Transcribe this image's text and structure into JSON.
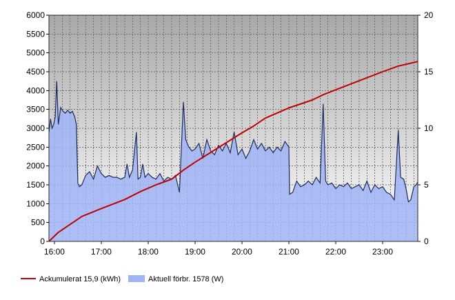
{
  "chart_data": {
    "type": "area",
    "x_ticks": [
      "16:00",
      "17:00",
      "18:00",
      "19:00",
      "20:00",
      "21:00",
      "22:00",
      "23:00"
    ],
    "x_range": [
      "15:53",
      "23:45"
    ],
    "y_left": {
      "range": [
        0,
        6000
      ],
      "ticks": [
        "0",
        "500",
        "1000",
        "1500",
        "2000",
        "2500",
        "3000",
        "3500",
        "4000",
        "4500",
        "5000",
        "5500",
        "6000"
      ]
    },
    "y_right": {
      "range": [
        0,
        20
      ],
      "ticks": [
        "0",
        "5",
        "10",
        "15",
        "20"
      ]
    },
    "grid": true,
    "legend_position": "bottom-left",
    "series": [
      {
        "name": "Ackumulerat 15,9 (kWh)",
        "type": "line",
        "axis": "right",
        "color": "#c00000",
        "points": [
          [
            "15:53",
            0.0
          ],
          [
            "16:05",
            0.8
          ],
          [
            "16:20",
            1.5
          ],
          [
            "16:35",
            2.2
          ],
          [
            "17:00",
            2.9
          ],
          [
            "17:30",
            3.7
          ],
          [
            "17:50",
            4.4
          ],
          [
            "18:10",
            5.0
          ],
          [
            "18:30",
            5.5
          ],
          [
            "18:45",
            6.3
          ],
          [
            "19:00",
            7.0
          ],
          [
            "19:30",
            8.3
          ],
          [
            "20:00",
            9.6
          ],
          [
            "20:15",
            10.2
          ],
          [
            "20:30",
            10.9
          ],
          [
            "20:50",
            11.5
          ],
          [
            "21:00",
            11.8
          ],
          [
            "21:30",
            12.5
          ],
          [
            "21:45",
            13.0
          ],
          [
            "22:00",
            13.4
          ],
          [
            "22:30",
            14.2
          ],
          [
            "23:00",
            15.0
          ],
          [
            "23:20",
            15.5
          ],
          [
            "23:45",
            15.9
          ]
        ]
      },
      {
        "name": "Aktuell förbr. 1578 (W)",
        "type": "area",
        "axis": "left",
        "color": "#9fb4f5",
        "edge_color": "#1c2a5a",
        "points": [
          [
            "15:53",
            2900
          ],
          [
            "15:55",
            3250
          ],
          [
            "15:57",
            3000
          ],
          [
            "15:59",
            3100
          ],
          [
            "16:01",
            3300
          ],
          [
            "16:03",
            4250
          ],
          [
            "16:05",
            3100
          ],
          [
            "16:08",
            3550
          ],
          [
            "16:11",
            3450
          ],
          [
            "16:14",
            3400
          ],
          [
            "16:17",
            3480
          ],
          [
            "16:20",
            3400
          ],
          [
            "16:23",
            3450
          ],
          [
            "16:26",
            3300
          ],
          [
            "16:28",
            3100
          ],
          [
            "16:30",
            1550
          ],
          [
            "16:32",
            1450
          ],
          [
            "16:35",
            1500
          ],
          [
            "16:40",
            1750
          ],
          [
            "16:45",
            1850
          ],
          [
            "16:50",
            1650
          ],
          [
            "16:55",
            2000
          ],
          [
            "17:00",
            1800
          ],
          [
            "17:05",
            1700
          ],
          [
            "17:10",
            1750
          ],
          [
            "17:15",
            1700
          ],
          [
            "17:20",
            1700
          ],
          [
            "17:25",
            1650
          ],
          [
            "17:30",
            1700
          ],
          [
            "17:33",
            2050
          ],
          [
            "17:36",
            1700
          ],
          [
            "17:40",
            1900
          ],
          [
            "17:45",
            2900
          ],
          [
            "17:47",
            1650
          ],
          [
            "17:50",
            1700
          ],
          [
            "17:53",
            2050
          ],
          [
            "17:56",
            1700
          ],
          [
            "18:00",
            1800
          ],
          [
            "18:05",
            1700
          ],
          [
            "18:10",
            1650
          ],
          [
            "18:15",
            1800
          ],
          [
            "18:20",
            1600
          ],
          [
            "18:25",
            1700
          ],
          [
            "18:30",
            1650
          ],
          [
            "18:35",
            1750
          ],
          [
            "18:40",
            1300
          ],
          [
            "18:45",
            3700
          ],
          [
            "18:48",
            2700
          ],
          [
            "18:52",
            2500
          ],
          [
            "18:56",
            2400
          ],
          [
            "19:00",
            2450
          ],
          [
            "19:05",
            2600
          ],
          [
            "19:10",
            2200
          ],
          [
            "19:15",
            2700
          ],
          [
            "19:20",
            2400
          ],
          [
            "19:25",
            2300
          ],
          [
            "19:30",
            2550
          ],
          [
            "19:35",
            2400
          ],
          [
            "19:40",
            2600
          ],
          [
            "19:45",
            2350
          ],
          [
            "19:50",
            2900
          ],
          [
            "19:55",
            2300
          ],
          [
            "20:00",
            2450
          ],
          [
            "20:05",
            2200
          ],
          [
            "20:10",
            2400
          ],
          [
            "20:15",
            2700
          ],
          [
            "20:20",
            2450
          ],
          [
            "20:25",
            2600
          ],
          [
            "20:30",
            2400
          ],
          [
            "20:35",
            2500
          ],
          [
            "20:40",
            2350
          ],
          [
            "20:45",
            2500
          ],
          [
            "20:50",
            2400
          ],
          [
            "20:55",
            2650
          ],
          [
            "21:00",
            2500
          ],
          [
            "21:01",
            1250
          ],
          [
            "21:05",
            1300
          ],
          [
            "21:10",
            1600
          ],
          [
            "21:15",
            1450
          ],
          [
            "21:20",
            1500
          ],
          [
            "21:25",
            1600
          ],
          [
            "21:30",
            1500
          ],
          [
            "21:35",
            1700
          ],
          [
            "21:40",
            1550
          ],
          [
            "21:44",
            3650
          ],
          [
            "21:47",
            1600
          ],
          [
            "21:50",
            1500
          ],
          [
            "21:55",
            1550
          ],
          [
            "22:00",
            1400
          ],
          [
            "22:05",
            1500
          ],
          [
            "22:10",
            1450
          ],
          [
            "22:15",
            1550
          ],
          [
            "22:20",
            1400
          ],
          [
            "22:25",
            1450
          ],
          [
            "22:30",
            1500
          ],
          [
            "22:35",
            1350
          ],
          [
            "22:40",
            1600
          ],
          [
            "22:45",
            1300
          ],
          [
            "22:50",
            1500
          ],
          [
            "22:55",
            1400
          ],
          [
            "23:00",
            1450
          ],
          [
            "23:05",
            1300
          ],
          [
            "23:10",
            1250
          ],
          [
            "23:15",
            1100
          ],
          [
            "23:20",
            2950
          ],
          [
            "23:23",
            1700
          ],
          [
            "23:27",
            1650
          ],
          [
            "23:30",
            1400
          ],
          [
            "23:33",
            1050
          ],
          [
            "23:36",
            1100
          ],
          [
            "23:40",
            1450
          ],
          [
            "23:43",
            1500
          ],
          [
            "23:45",
            1578
          ]
        ]
      }
    ],
    "colors": {
      "plot_bg_top": "#a8a8a8",
      "plot_bg_bottom": "#ffffff",
      "grid": "#707070",
      "frame": "#2a2a2a"
    }
  }
}
